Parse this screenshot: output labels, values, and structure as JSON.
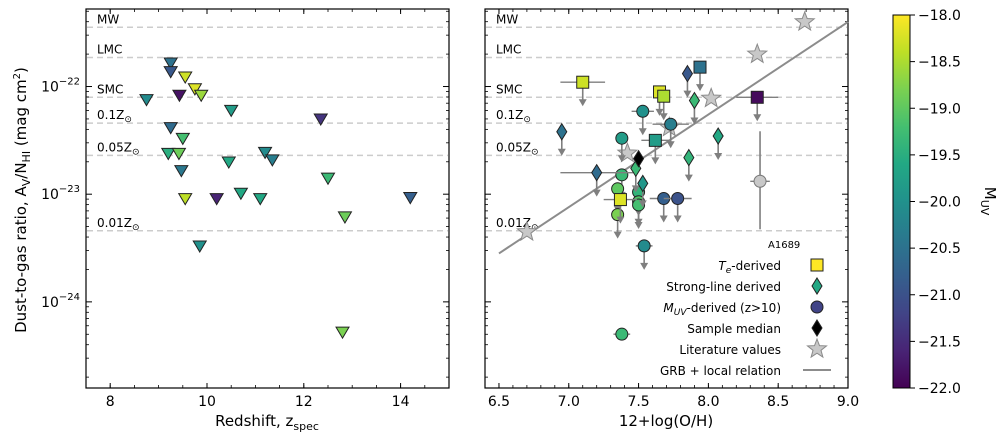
{
  "chart_data": [
    {
      "type": "scatter",
      "panel": "left",
      "xlabel": "Redshift, z",
      "xlabel_sub": "spec",
      "ylabel_parts": {
        "main": "Dust-to-gas ratio, A",
        "sub1": "V",
        "mid": "/N",
        "sub2": "HI",
        "units": " (mag cm",
        "sup": "2",
        "close": ")"
      },
      "xlim": [
        7.5,
        15.0
      ],
      "ylim_log10": [
        -24.8,
        -21.28
      ],
      "xticks": [
        8,
        10,
        12,
        14
      ],
      "xtick_labels": [
        "8",
        "10",
        "12",
        "14"
      ],
      "yticks_log10": [
        -22,
        -23,
        -24
      ],
      "ytick_labels": [
        {
          "base": "10",
          "exp": "−22"
        },
        {
          "base": "10",
          "exp": "−23"
        },
        {
          "base": "10",
          "exp": "−24"
        }
      ],
      "reference_lines": [
        {
          "label": "MW",
          "log10": -21.45
        },
        {
          "label": "LMC",
          "log10": -21.73
        },
        {
          "label": "SMC",
          "log10": -22.1
        },
        {
          "label": "0.1Z",
          "sub": "⊙",
          "log10": -22.34
        },
        {
          "label": "0.05Z",
          "sub": "⊙",
          "log10": -22.64
        },
        {
          "label": "0.01Z",
          "sub": "⊙",
          "log10": -23.34
        }
      ],
      "points": [
        {
          "x": 9.25,
          "log10": -21.78,
          "muv": -20.5
        },
        {
          "x": 9.25,
          "log10": -21.86,
          "muv": -20.9
        },
        {
          "x": 9.55,
          "log10": -21.91,
          "muv": -18.3
        },
        {
          "x": 9.75,
          "log10": -22.02,
          "muv": -18.2
        },
        {
          "x": 9.88,
          "log10": -22.08,
          "muv": -18.6
        },
        {
          "x": 9.43,
          "log10": -22.08,
          "muv": -21.8
        },
        {
          "x": 8.75,
          "log10": -22.12,
          "muv": -20.1
        },
        {
          "x": 10.5,
          "log10": -22.22,
          "muv": -19.8
        },
        {
          "x": 12.35,
          "log10": -22.3,
          "muv": -21.4
        },
        {
          "x": 9.25,
          "log10": -22.38,
          "muv": -20.6
        },
        {
          "x": 9.5,
          "log10": -22.48,
          "muv": -19.2
        },
        {
          "x": 9.2,
          "log10": -22.62,
          "muv": -19.5
        },
        {
          "x": 9.42,
          "log10": -22.62,
          "muv": -18.9
        },
        {
          "x": 11.2,
          "log10": -22.61,
          "muv": -20.1
        },
        {
          "x": 11.35,
          "log10": -22.68,
          "muv": -20.3
        },
        {
          "x": 10.45,
          "log10": -22.7,
          "muv": -19.6
        },
        {
          "x": 9.47,
          "log10": -22.78,
          "muv": -20.4
        },
        {
          "x": 12.5,
          "log10": -22.85,
          "muv": -19.3
        },
        {
          "x": 10.7,
          "log10": -22.99,
          "muv": -19.6
        },
        {
          "x": 11.1,
          "log10": -23.04,
          "muv": -19.6
        },
        {
          "x": 9.55,
          "log10": -23.04,
          "muv": -18.4
        },
        {
          "x": 10.2,
          "log10": -23.04,
          "muv": -21.6
        },
        {
          "x": 14.2,
          "log10": -23.03,
          "muv": -20.8
        },
        {
          "x": 12.85,
          "log10": -23.21,
          "muv": -18.9
        },
        {
          "x": 9.85,
          "log10": -23.48,
          "muv": -20.0
        },
        {
          "x": 12.8,
          "log10": -24.28,
          "muv": -18.8
        }
      ]
    },
    {
      "type": "scatter",
      "panel": "right",
      "xlabel": "12+log(O/H)",
      "xlim": [
        6.4,
        9.0
      ],
      "ylim_log10": [
        -24.8,
        -21.28
      ],
      "xticks": [
        6.5,
        7.0,
        7.5,
        8.0,
        8.5,
        9.0
      ],
      "xtick_labels": [
        "6.5",
        "7.0",
        "7.5",
        "8.0",
        "8.5",
        "9.0"
      ],
      "reference_lines": [
        {
          "label": "MW",
          "log10": -21.45
        },
        {
          "label": "LMC",
          "log10": -21.73
        },
        {
          "label": "SMC",
          "log10": -22.1
        },
        {
          "label": "0.1Z",
          "sub": "⊙",
          "log10": -22.34
        },
        {
          "label": "0.05Z",
          "sub": "⊙",
          "log10": -22.64
        },
        {
          "label": "0.01Z",
          "sub": "⊙",
          "log10": -23.34
        }
      ],
      "relation": {
        "label": "GRB + local relation",
        "x": [
          6.5,
          9.0
        ],
        "log10": [
          -23.55,
          -21.4
        ]
      },
      "series": [
        {
          "name": "T_e-derived",
          "marker": "square",
          "points": [
            {
              "x": 7.1,
              "log10": -21.96,
              "muv": -18.3,
              "xerr": 0.16,
              "upper": true
            },
            {
              "x": 7.65,
              "log10": -22.05,
              "muv": -18.2,
              "upper": true
            },
            {
              "x": 7.68,
              "log10": -22.09,
              "muv": -18.5,
              "upper": true
            },
            {
              "x": 7.94,
              "log10": -21.82,
              "muv": -20.5,
              "upper": true
            },
            {
              "x": 8.35,
              "log10": -22.1,
              "muv": -21.9,
              "xerr": 0.15,
              "upper": true
            },
            {
              "x": 7.62,
              "log10": -22.5,
              "muv": -19.8,
              "xerr": 0.1,
              "upper": true
            },
            {
              "x": 7.37,
              "log10": -23.05,
              "muv": -18.2,
              "xerr": 0.12,
              "upper": true
            }
          ]
        },
        {
          "name": "Strong-line derived",
          "marker": "diamond",
          "points": [
            {
              "x": 6.95,
              "log10": -22.42,
              "muv": -20.5,
              "upper": true
            },
            {
              "x": 7.2,
              "log10": -22.8,
              "muv": -20.6,
              "xerr": 0.26,
              "upper": true
            },
            {
              "x": 7.85,
              "log10": -21.88,
              "muv": -20.9,
              "upper": true
            },
            {
              "x": 7.9,
              "log10": -22.13,
              "muv": -19.3,
              "upper": true
            },
            {
              "x": 7.86,
              "log10": -22.66,
              "muv": -19.4,
              "upper": true
            },
            {
              "x": 8.07,
              "log10": -22.46,
              "muv": -19.6,
              "upper": true
            },
            {
              "x": 7.48,
              "log10": -22.76,
              "muv": -19.3,
              "upper": true
            },
            {
              "x": 7.53,
              "log10": -22.9,
              "muv": -19.9,
              "upper": true
            }
          ]
        },
        {
          "name": "M_UV-derived (z>10)",
          "marker": "circle",
          "points": [
            {
              "x": 7.53,
              "log10": -22.23,
              "muv": -20.0,
              "xerr": 0.08,
              "upper": true
            },
            {
              "x": 7.38,
              "log10": -22.48,
              "muv": -19.8,
              "upper": true
            },
            {
              "x": 7.38,
              "log10": -22.82,
              "muv": -19.3,
              "upper": true
            },
            {
              "x": 7.35,
              "log10": -22.95,
              "muv": -19.0,
              "upper": true
            },
            {
              "x": 7.5,
              "log10": -22.98,
              "muv": -19.4,
              "upper": true
            },
            {
              "x": 7.5,
              "log10": -23.07,
              "muv": -19.1,
              "upper": true
            },
            {
              "x": 7.35,
              "log10": -23.19,
              "muv": -18.8,
              "upper": true
            },
            {
              "x": 7.5,
              "log10": -23.1,
              "muv": -19.2,
              "upper": true
            },
            {
              "x": 7.73,
              "log10": -22.35,
              "muv": -20.3,
              "xerr": 0.13,
              "upper": true
            },
            {
              "x": 7.68,
              "log10": -23.04,
              "muv": -20.8,
              "xerr": 0.1,
              "upper": true
            },
            {
              "x": 7.78,
              "log10": -23.04,
              "muv": -21.0,
              "xerr": 0.1,
              "upper": true
            },
            {
              "x": 7.54,
              "log10": -23.48,
              "muv": -20.1,
              "xerr": 0.06,
              "upper": true
            },
            {
              "x": 7.38,
              "log10": -24.3,
              "muv": -19.3,
              "xerr": 0.06
            }
          ]
        },
        {
          "name": "Sample median",
          "marker": "diamond-black",
          "points": [
            {
              "x": 7.5,
              "log10": -22.67,
              "muv": null
            }
          ]
        },
        {
          "name": "Literature values",
          "marker": "star",
          "points": [
            {
              "x": 8.69,
              "log10": -21.4
            },
            {
              "x": 8.35,
              "log10": -21.7
            },
            {
              "x": 8.02,
              "log10": -22.11
            },
            {
              "x": 7.72,
              "log10": -22.38
            },
            {
              "x": 7.42,
              "log10": -22.62
            },
            {
              "x": 6.7,
              "log10": -23.35
            }
          ]
        },
        {
          "name": "A1689",
          "marker": "circle-gray",
          "points": [
            {
              "x": 8.37,
              "log10": -22.88,
              "xerr": 0.07,
              "upper_err": true
            }
          ]
        }
      ],
      "annotations": [
        {
          "text": "A1689"
        }
      ],
      "legend": {
        "position": "lower-right",
        "entries": [
          {
            "label": "T",
            "sub": "e",
            "rest": "-derived",
            "marker": "square"
          },
          {
            "label": "Strong-line derived",
            "marker": "diamond"
          },
          {
            "label": "M",
            "sub": "UV",
            "rest": "-derived (z>10)",
            "marker": "circle"
          },
          {
            "label": "Sample median",
            "marker": "diamond-black"
          },
          {
            "label": "Literature values",
            "marker": "star"
          },
          {
            "label": "GRB + local relation",
            "marker": "line"
          }
        ]
      }
    }
  ],
  "colorbar": {
    "label": "M",
    "label_sub": "UV",
    "range": [
      -22.0,
      -18.0
    ],
    "ticks": [
      -18.0,
      -18.5,
      -19.0,
      -19.5,
      -20.0,
      -20.5,
      -21.0,
      -21.5,
      -22.0
    ],
    "tick_labels": [
      "−18.0",
      "−18.5",
      "−19.0",
      "−19.5",
      "−20.0",
      "−20.5",
      "−21.0",
      "−21.5",
      "−22.0"
    ]
  },
  "colors": {
    "viridis": [
      "#440154",
      "#482475",
      "#414487",
      "#355f8d",
      "#2a788e",
      "#21918c",
      "#22a884",
      "#44bf70",
      "#7ad151",
      "#bddf26",
      "#fde725"
    ],
    "ref_line": "#cccccc",
    "relation": "#8c8c8c",
    "arrow": "#7f7f7f",
    "star": "#c8c8c8"
  }
}
